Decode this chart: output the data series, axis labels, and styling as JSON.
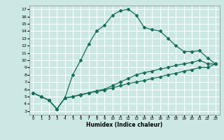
{
  "xlabel": "Humidex (Indice chaleur)",
  "bg_color": "#cce8e4",
  "grid_color": "#ffffff",
  "line_color": "#1a6b5a",
  "xlim": [
    -0.5,
    23.5
  ],
  "ylim": [
    2.5,
    17.5
  ],
  "xticks": [
    0,
    1,
    2,
    3,
    4,
    5,
    6,
    7,
    8,
    9,
    10,
    11,
    12,
    13,
    14,
    15,
    16,
    17,
    18,
    19,
    20,
    21,
    22,
    23
  ],
  "yticks": [
    3,
    4,
    5,
    6,
    7,
    8,
    9,
    10,
    11,
    12,
    13,
    14,
    15,
    16,
    17
  ],
  "line1_x": [
    0,
    1,
    2,
    3,
    4,
    5,
    6,
    7,
    8,
    9,
    10,
    11,
    12,
    13,
    14,
    15,
    16,
    17,
    18,
    19,
    20,
    21,
    22,
    23
  ],
  "line1_y": [
    5.5,
    5.0,
    4.5,
    3.3,
    4.8,
    8.0,
    10.0,
    12.2,
    14.0,
    14.8,
    16.2,
    16.8,
    17.0,
    16.2,
    14.5,
    14.2,
    14.0,
    13.0,
    12.0,
    11.2,
    11.2,
    11.3,
    10.3,
    9.5
  ],
  "line2_x": [
    0,
    1,
    2,
    3,
    4,
    5,
    6,
    7,
    8,
    9,
    10,
    11,
    12,
    13,
    14,
    15,
    16,
    17,
    18,
    19,
    20,
    21,
    22,
    23
  ],
  "line2_y": [
    5.5,
    5.0,
    4.5,
    3.3,
    4.8,
    5.0,
    5.3,
    5.5,
    5.8,
    6.0,
    6.5,
    7.0,
    7.5,
    8.0,
    8.3,
    8.5,
    8.8,
    9.0,
    9.3,
    9.5,
    9.7,
    10.0,
    9.5,
    9.5
  ],
  "line3_x": [
    0,
    1,
    2,
    3,
    4,
    5,
    6,
    7,
    8,
    9,
    10,
    11,
    12,
    13,
    14,
    15,
    16,
    17,
    18,
    19,
    20,
    21,
    22,
    23
  ],
  "line3_y": [
    5.5,
    5.0,
    4.5,
    3.3,
    4.8,
    5.0,
    5.2,
    5.5,
    5.7,
    5.9,
    6.2,
    6.5,
    6.8,
    7.0,
    7.2,
    7.5,
    7.7,
    8.0,
    8.2,
    8.5,
    8.7,
    9.0,
    9.0,
    9.5
  ]
}
